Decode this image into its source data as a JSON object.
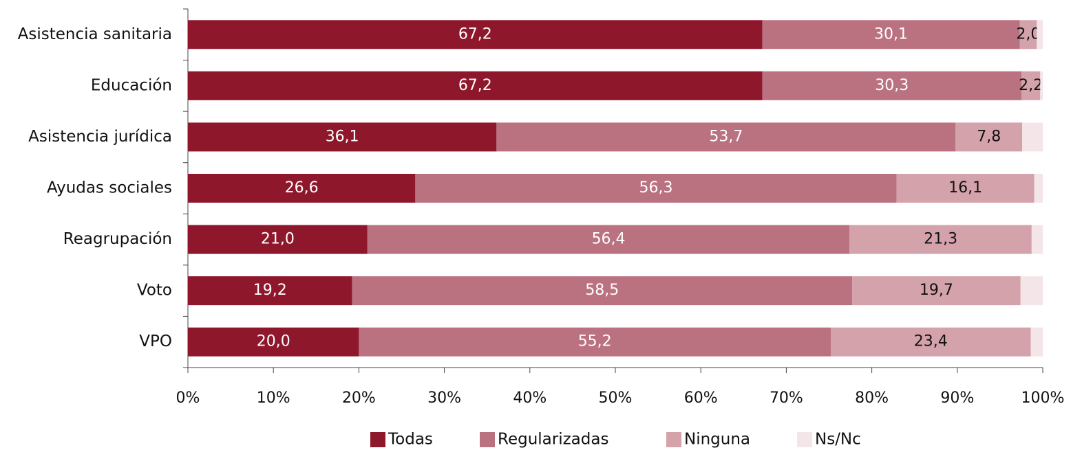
{
  "chart_data": {
    "type": "stacked-barh",
    "categories": [
      "Asistencia sanitaria",
      "Educación",
      "Asistencia jurídica",
      "Ayudas sociales",
      "Reagrupación",
      "Voto",
      "VPO"
    ],
    "series": [
      {
        "name": "Todas",
        "color": "#8f172c",
        "values": [
          67.2,
          67.2,
          36.1,
          26.6,
          21.0,
          19.2,
          20.0
        ],
        "value_labels": [
          "67,2",
          "67,2",
          "36,1",
          "26,6",
          "21,0",
          "19,2",
          "20,0"
        ]
      },
      {
        "name": "Regularizadas",
        "color": "#bb7280",
        "values": [
          30.1,
          30.3,
          53.7,
          56.3,
          56.4,
          58.5,
          55.2
        ],
        "value_labels": [
          "30,1",
          "30,3",
          "53,7",
          "56,3",
          "56,4",
          "58,5",
          "55,2"
        ]
      },
      {
        "name": "Ninguna",
        "color": "#d4a2aa",
        "values": [
          2.0,
          2.2,
          7.8,
          16.1,
          21.3,
          19.7,
          23.4
        ],
        "value_labels": [
          "2,0",
          "2,2",
          "7,8",
          "16,1",
          "21,3",
          "19,7",
          "23,4"
        ]
      },
      {
        "name": "Ns/Nc",
        "color": "#f4e6e8",
        "values": [
          0.7,
          0.3,
          2.4,
          1.0,
          1.3,
          2.6,
          1.4
        ]
      }
    ],
    "xlim": [
      0,
      100
    ],
    "xticks": [
      {
        "value": 0,
        "label": "0%"
      },
      {
        "value": 10,
        "label": "10%"
      },
      {
        "value": 20,
        "label": "20%"
      },
      {
        "value": 30,
        "label": "30%"
      },
      {
        "value": 40,
        "label": "40%"
      },
      {
        "value": 50,
        "label": "50%"
      },
      {
        "value": 60,
        "label": "60%"
      },
      {
        "value": 70,
        "label": "70%"
      },
      {
        "value": 80,
        "label": "80%"
      },
      {
        "value": 90,
        "label": "90%"
      },
      {
        "value": 100,
        "label": "100%"
      }
    ],
    "legend": "bottom"
  }
}
